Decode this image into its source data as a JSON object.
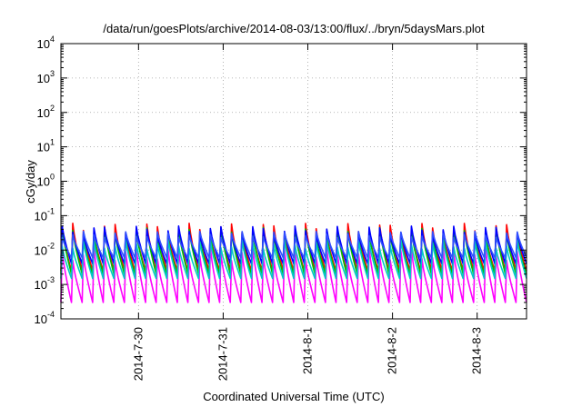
{
  "chart_data": {
    "type": "line",
    "title": "/data/run/goesPlots/archive/2014-08-03/13:00/flux/../bryn/5daysMars.plot",
    "xlabel": "Coordinated Universal Time (UTC)",
    "ylabel": "cGy/day",
    "yscale": "log",
    "ylim": [
      0.0001,
      10000
    ],
    "xlim": [
      "2014-07-29T02:00",
      "2014-08-03T14:00"
    ],
    "x_ticks": [
      "2014-7-30",
      "2014-7-31",
      "2014-8-1",
      "2014-8-2",
      "2014-8-3"
    ],
    "y_ticks": [
      {
        "base": "10",
        "exp": "-4"
      },
      {
        "base": "10",
        "exp": "-3"
      },
      {
        "base": "10",
        "exp": "-2"
      },
      {
        "base": "10",
        "exp": "-1"
      },
      {
        "base": "10",
        "exp": "0"
      },
      {
        "base": "10",
        "exp": "1"
      },
      {
        "base": "10",
        "exp": "2"
      },
      {
        "base": "10",
        "exp": "3"
      },
      {
        "base": "10",
        "exp": "4"
      }
    ],
    "grid": true,
    "legend": "none",
    "pattern": {
      "cycle_hours": 3,
      "cycles_total": 44
    },
    "series": [
      {
        "color": "#ff0000",
        "peak": 0.06,
        "trough": 0.0025
      },
      {
        "color": "#00c000",
        "peak": 0.045,
        "trough": 0.002
      },
      {
        "color": "#0000ff",
        "peak": 0.05,
        "trough": 0.004
      },
      {
        "color": "#ff00ff",
        "peak": 0.012,
        "trough": 0.0003
      },
      {
        "color": "#00c8c8",
        "peak": 0.02,
        "trough": 0.0015
      },
      {
        "color": "#3050ff",
        "peak": 0.035,
        "trough": 0.006
      }
    ]
  }
}
